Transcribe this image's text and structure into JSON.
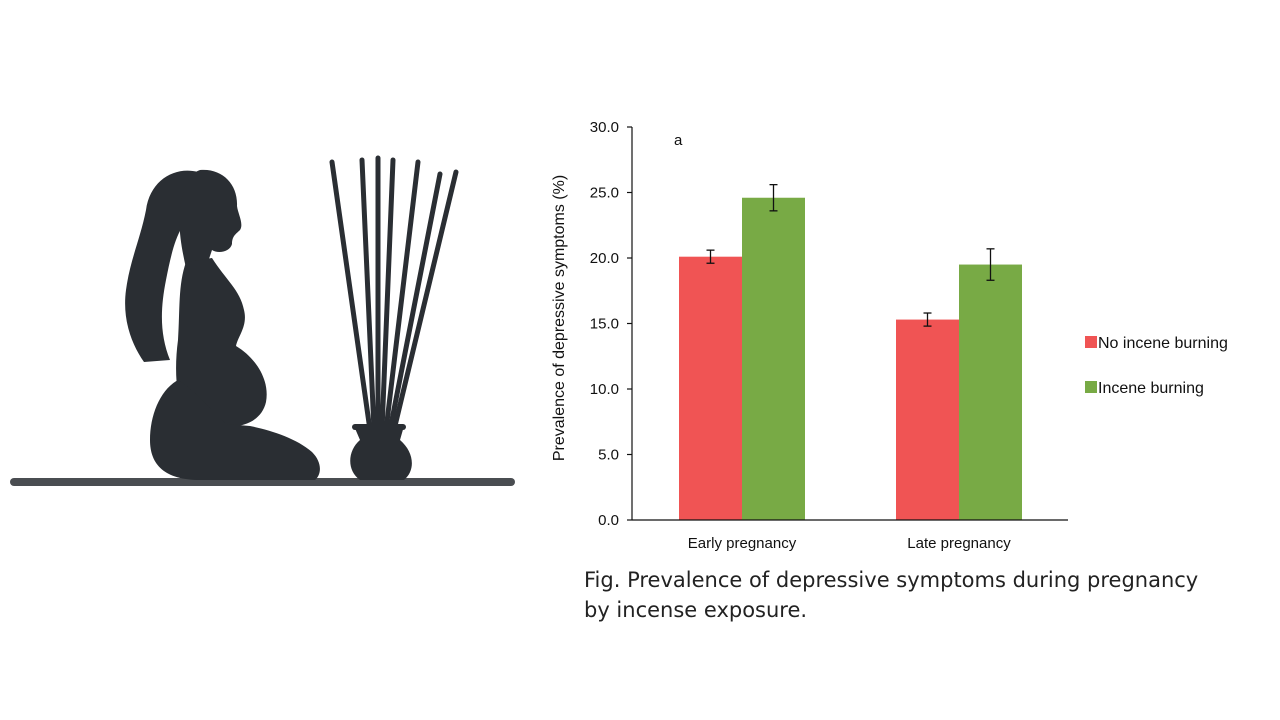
{
  "illustration": {
    "subject_icon": "pregnant-woman-silhouette-icon",
    "object_icon": "incense-sticks-pot-icon"
  },
  "chart_data": {
    "type": "bar",
    "panel_label": "a",
    "categories": [
      "Early pregnancy",
      "Late pregnancy"
    ],
    "series": [
      {
        "name": "No incene burning",
        "color": "#f05454",
        "values": [
          20.1,
          15.3
        ],
        "error": [
          0.5,
          0.5
        ]
      },
      {
        "name": "Incene burning",
        "color": "#78aa45",
        "values": [
          24.6,
          19.5
        ],
        "error": [
          1.0,
          1.2
        ]
      }
    ],
    "ylabel": "Prevalence of depressive symptoms (%)",
    "xlabel": "",
    "ylim": [
      0,
      30
    ],
    "yticks": [
      "0.0",
      "5.0",
      "10.0",
      "15.0",
      "20.0",
      "25.0",
      "30.0"
    ],
    "grid": false,
    "legend_position": "right"
  },
  "caption": {
    "line1": "Fig. Prevalence of depressive symptoms during pregnancy",
    "line2": "by incense exposure."
  }
}
